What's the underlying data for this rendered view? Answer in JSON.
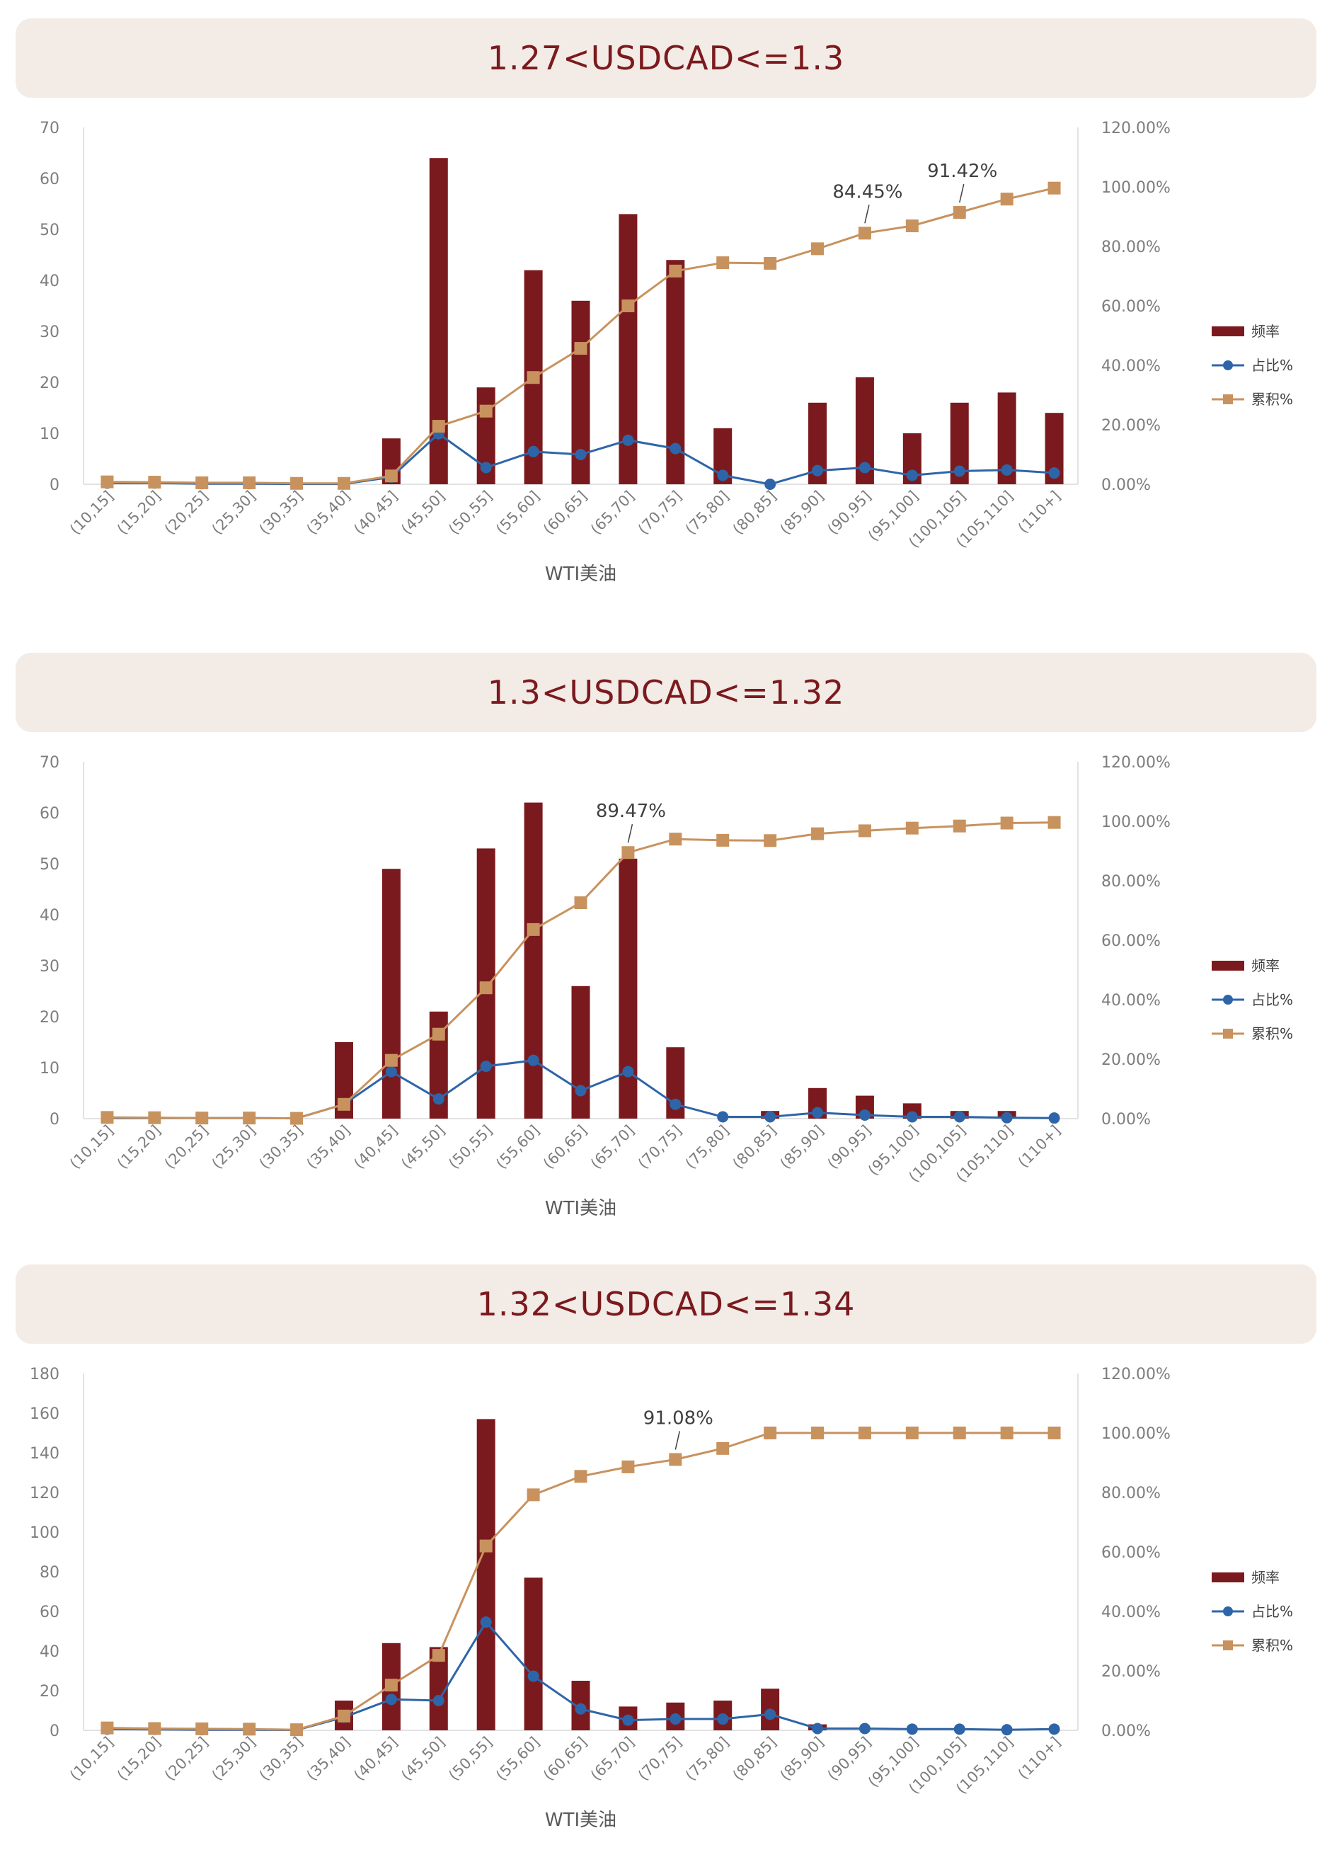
{
  "colors": {
    "bar": "#7b1a1e",
    "share_line": "#2e65a8",
    "cum_line": "#c8925e",
    "title": "#7b1a1e",
    "banner": "#f3ebe6",
    "axis_text": "#7d7d7d"
  },
  "legend": {
    "freq": "频率",
    "share": "占比%",
    "cum": "累积%"
  },
  "chart_data": [
    {
      "type": "bar",
      "title": "1.27<USDCAD<=1.3",
      "xlabel": "WTI美油",
      "categories": [
        "(10,15]",
        "(15,20]",
        "(20,25]",
        "(25,30]",
        "(30,35]",
        "(35,40]",
        "(40,45]",
        "(45,50]",
        "(50,55]",
        "(55,60]",
        "(60,65]",
        "(65,70]",
        "(70,75]",
        "(75,80]",
        "(80,85]",
        "(85,90]",
        "(90,95]",
        "(95,100]",
        "(100,105]",
        "(105,110]",
        "(110+]"
      ],
      "y_left": {
        "min": 0,
        "max": 70,
        "step": 10,
        "ticks": [
          "0",
          "10",
          "20",
          "30",
          "40",
          "50",
          "60",
          "70"
        ]
      },
      "y_right": {
        "min": 0,
        "max": 120,
        "ticks": [
          "0.00%",
          "20.00%",
          "40.00%",
          "60.00%",
          "80.00%",
          "100.00%",
          "120.00%"
        ]
      },
      "series": [
        {
          "name": "频率",
          "type": "bar",
          "axis": "left",
          "values": [
            0,
            0,
            0,
            0,
            0,
            0,
            9,
            64,
            19,
            42,
            36,
            53,
            44,
            11,
            0,
            16,
            21,
            10,
            16,
            18,
            14
          ]
        },
        {
          "name": "占比%",
          "type": "line",
          "axis": "right",
          "values": [
            0.4,
            0.4,
            0.2,
            0.2,
            0.1,
            0.1,
            2.4,
            17.0,
            5.6,
            11.0,
            10.0,
            14.8,
            12.0,
            3.0,
            0.0,
            4.6,
            5.6,
            3.0,
            4.4,
            4.8,
            3.8
          ]
        },
        {
          "name": "累积%",
          "type": "line",
          "axis": "right",
          "values": [
            0.8,
            0.7,
            0.5,
            0.5,
            0.3,
            0.3,
            2.8,
            19.5,
            24.6,
            35.9,
            45.7,
            60.0,
            71.7,
            74.5,
            74.3,
            79.2,
            84.45,
            86.9,
            91.42,
            95.9,
            99.6
          ]
        }
      ],
      "annotations": [
        {
          "text": "84.45%",
          "index": 16
        },
        {
          "text": "91.42%",
          "index": 18
        }
      ]
    },
    {
      "type": "bar",
      "title": "1.3<USDCAD<=1.32",
      "xlabel": "WTI美油",
      "categories": [
        "(10,15]",
        "(15,20]",
        "(20,25]",
        "(25,30]",
        "(30,35]",
        "(35,40]",
        "(40,45]",
        "(45,50]",
        "(50,55]",
        "(55,60]",
        "(60,65]",
        "(65,70]",
        "(70,75]",
        "(75,80]",
        "(80,85]",
        "(85,90]",
        "(90,95]",
        "(95,100]",
        "(100,105]",
        "(105,110]",
        "(110+]"
      ],
      "y_left": {
        "min": 0,
        "max": 70,
        "step": 10,
        "ticks": [
          "0",
          "10",
          "20",
          "30",
          "40",
          "50",
          "60",
          "70"
        ]
      },
      "y_right": {
        "min": 0,
        "max": 120,
        "ticks": [
          "0.00%",
          "20.00%",
          "40.00%",
          "60.00%",
          "80.00%",
          "100.00%",
          "120.00%"
        ]
      },
      "series": [
        {
          "name": "频率",
          "type": "bar",
          "axis": "left",
          "values": [
            0,
            0,
            0,
            0,
            0,
            15,
            49,
            21,
            53,
            62,
            26,
            51,
            14,
            0,
            1.5,
            6,
            4.5,
            3,
            1.5,
            1.5,
            0
          ]
        },
        {
          "name": "占比%",
          "type": "line",
          "axis": "right",
          "values": [
            0.2,
            0.2,
            0.2,
            0.2,
            0.1,
            4.8,
            15.8,
            6.6,
            17.6,
            19.6,
            9.4,
            15.8,
            4.8,
            0.6,
            0.6,
            2.0,
            1.2,
            0.6,
            0.6,
            0.3,
            0.2
          ]
        },
        {
          "name": "累积%",
          "type": "line",
          "axis": "right",
          "values": [
            0.4,
            0.3,
            0.2,
            0.2,
            0.1,
            4.8,
            19.6,
            28.4,
            44.0,
            63.6,
            72.6,
            89.47,
            94.0,
            93.6,
            93.5,
            95.8,
            96.8,
            97.7,
            98.4,
            99.4,
            99.6
          ]
        }
      ],
      "annotations": [
        {
          "text": "89.47%",
          "index": 11
        }
      ]
    },
    {
      "type": "bar",
      "title": "1.32<USDCAD<=1.34",
      "xlabel": "WTI美油",
      "categories": [
        "(10,15]",
        "(15,20]",
        "(20,25]",
        "(25,30]",
        "(30,35]",
        "(35,40]",
        "(40,45]",
        "(45,50]",
        "(50,55]",
        "(55,60]",
        "(60,65]",
        "(65,70]",
        "(70,75]",
        "(75,80]",
        "(80,85]",
        "(85,90]",
        "(90,95]",
        "(95,100]",
        "(100,105]",
        "(105,110]",
        "(110+]"
      ],
      "y_left": {
        "min": 0,
        "max": 180,
        "step": 20,
        "ticks": [
          "0",
          "20",
          "40",
          "60",
          "80",
          "100",
          "120",
          "140",
          "160",
          "180"
        ]
      },
      "y_right": {
        "min": 0,
        "max": 120,
        "ticks": [
          "0.00%",
          "20.00%",
          "40.00%",
          "60.00%",
          "80.00%",
          "100.00%",
          "120.00%"
        ]
      },
      "series": [
        {
          "name": "频率",
          "type": "bar",
          "axis": "left",
          "values": [
            0,
            0,
            0,
            0,
            0,
            15,
            44,
            42,
            157,
            77,
            25,
            12,
            14,
            15,
            21,
            3,
            0,
            0,
            0,
            0,
            0
          ]
        },
        {
          "name": "占比%",
          "type": "line",
          "axis": "right",
          "values": [
            0.4,
            0.3,
            0.2,
            0.2,
            0.1,
            4.4,
            10.4,
            10.0,
            36.4,
            18.2,
            7.2,
            3.4,
            3.8,
            3.8,
            5.4,
            0.6,
            0.6,
            0.4,
            0.4,
            0.2,
            0.4
          ]
        },
        {
          "name": "累积%",
          "type": "line",
          "axis": "right",
          "values": [
            0.8,
            0.6,
            0.5,
            0.4,
            0.2,
            4.8,
            15.2,
            25.2,
            62.0,
            79.2,
            85.4,
            88.6,
            91.08,
            94.8,
            100.0,
            100.0,
            100.0,
            100.0,
            100.0,
            100.0,
            100.0
          ]
        }
      ],
      "annotations": [
        {
          "text": "91.08%",
          "index": 12
        }
      ]
    }
  ]
}
